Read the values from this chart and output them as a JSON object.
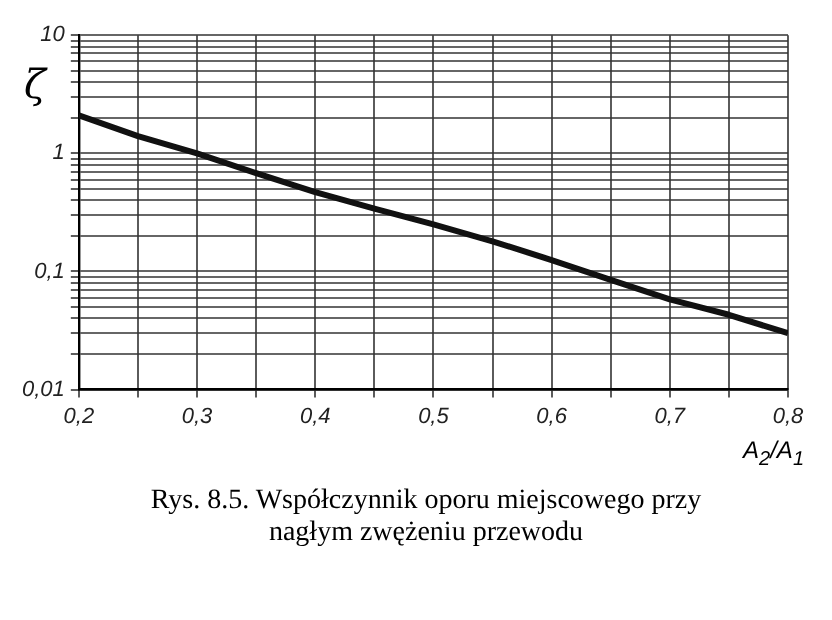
{
  "chart_data": {
    "type": "line",
    "xlabel": "A$_{2}$/A$_{1}$",
    "ylabel": "ζ",
    "annotations": [
      "Rys. 8.5. Współczynnik oporu miejscowego przy nagłym zwężeniu przewodu"
    ],
    "x": [
      0.2,
      0.25,
      0.3,
      0.35,
      0.4,
      0.45,
      0.5,
      0.55,
      0.6,
      0.65,
      0.7,
      0.75,
      0.8
    ],
    "series": [
      {
        "color": "#111111",
        "values": [
          2.1,
          1.4,
          1.0,
          0.68,
          0.47,
          0.34,
          0.25,
          0.18,
          0.125,
          0.085,
          0.058,
          0.043,
          0.03
        ]
      }
    ],
    "log": "y",
    "grid": true,
    "legend": false,
    "marker": "none",
    "line_style": "solid",
    "xlim": [
      0.2,
      0.8
    ],
    "xticks": [
      {
        "value": 0.2,
        "label": "0,2"
      },
      {
        "value": 0.25,
        "label": null
      },
      {
        "value": 0.3,
        "label": "0,3"
      },
      {
        "value": 0.35,
        "label": null
      },
      {
        "value": 0.4,
        "label": "0,4"
      },
      {
        "value": 0.45,
        "label": null
      },
      {
        "value": 0.5,
        "label": "0,5"
      },
      {
        "value": 0.55,
        "label": null
      },
      {
        "value": 0.6,
        "label": "0,6"
      },
      {
        "value": 0.65,
        "label": null
      },
      {
        "value": 0.7,
        "label": "0,7"
      },
      {
        "value": 0.75,
        "label": null
      },
      {
        "value": 0.8,
        "label": "0,8"
      }
    ],
    "ylim": [
      0.01,
      10
    ],
    "yticks": [
      {
        "value": 0.01,
        "label": "0,01"
      },
      {
        "value": 0.02,
        "label": null
      },
      {
        "value": 0.03,
        "label": null
      },
      {
        "value": 0.04,
        "label": null
      },
      {
        "value": 0.05,
        "label": null
      },
      {
        "value": 0.06,
        "label": null
      },
      {
        "value": 0.07,
        "label": null
      },
      {
        "value": 0.08,
        "label": null
      },
      {
        "value": 0.09,
        "label": null
      },
      {
        "value": 0.1,
        "label": "0,1"
      },
      {
        "value": 0.2,
        "label": null
      },
      {
        "value": 0.3,
        "label": null
      },
      {
        "value": 0.4,
        "label": null
      },
      {
        "value": 0.5,
        "label": null
      },
      {
        "value": 0.6,
        "label": null
      },
      {
        "value": 0.7,
        "label": null
      },
      {
        "value": 0.8,
        "label": null
      },
      {
        "value": 0.9,
        "label": null
      },
      {
        "value": 1,
        "label": "1"
      },
      {
        "value": 2,
        "label": null
      },
      {
        "value": 3,
        "label": null
      },
      {
        "value": 4,
        "label": null
      },
      {
        "value": 5,
        "label": null
      },
      {
        "value": 6,
        "label": null
      },
      {
        "value": 7,
        "label": null
      },
      {
        "value": 8,
        "label": null
      },
      {
        "value": 9,
        "label": null
      },
      {
        "value": 10,
        "label": "10"
      }
    ]
  }
}
